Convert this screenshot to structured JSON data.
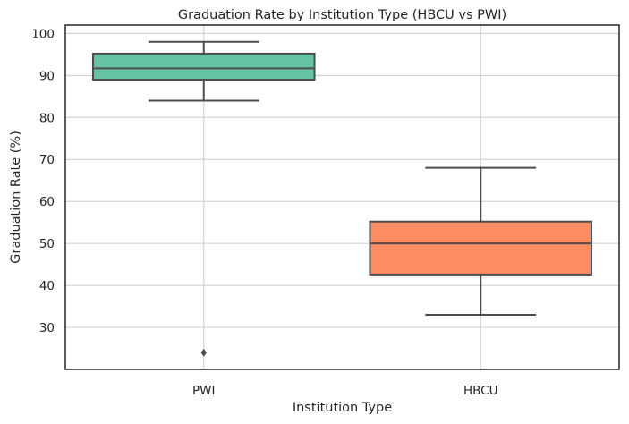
{
  "chart_data": {
    "type": "box",
    "title": "Graduation Rate by Institution Type (HBCU vs PWI)",
    "xlabel": "Institution Type",
    "ylabel": "Graduation Rate (%)",
    "categories": [
      "PWI",
      "HBCU"
    ],
    "ylim": [
      20,
      102
    ],
    "yticks": [
      30,
      40,
      50,
      60,
      70,
      80,
      90,
      100
    ],
    "grid": true,
    "boxes": [
      {
        "category": "PWI",
        "whisker_low": 84,
        "q1": 89,
        "median": 91.7,
        "q3": 95.2,
        "whisker_high": 98,
        "outliers": [
          24
        ],
        "color": "#66c2a5"
      },
      {
        "category": "HBCU",
        "whisker_low": 33,
        "q1": 42.6,
        "median": 50,
        "q3": 55.2,
        "whisker_high": 68,
        "outliers": [],
        "color": "#fc8d62"
      }
    ]
  }
}
